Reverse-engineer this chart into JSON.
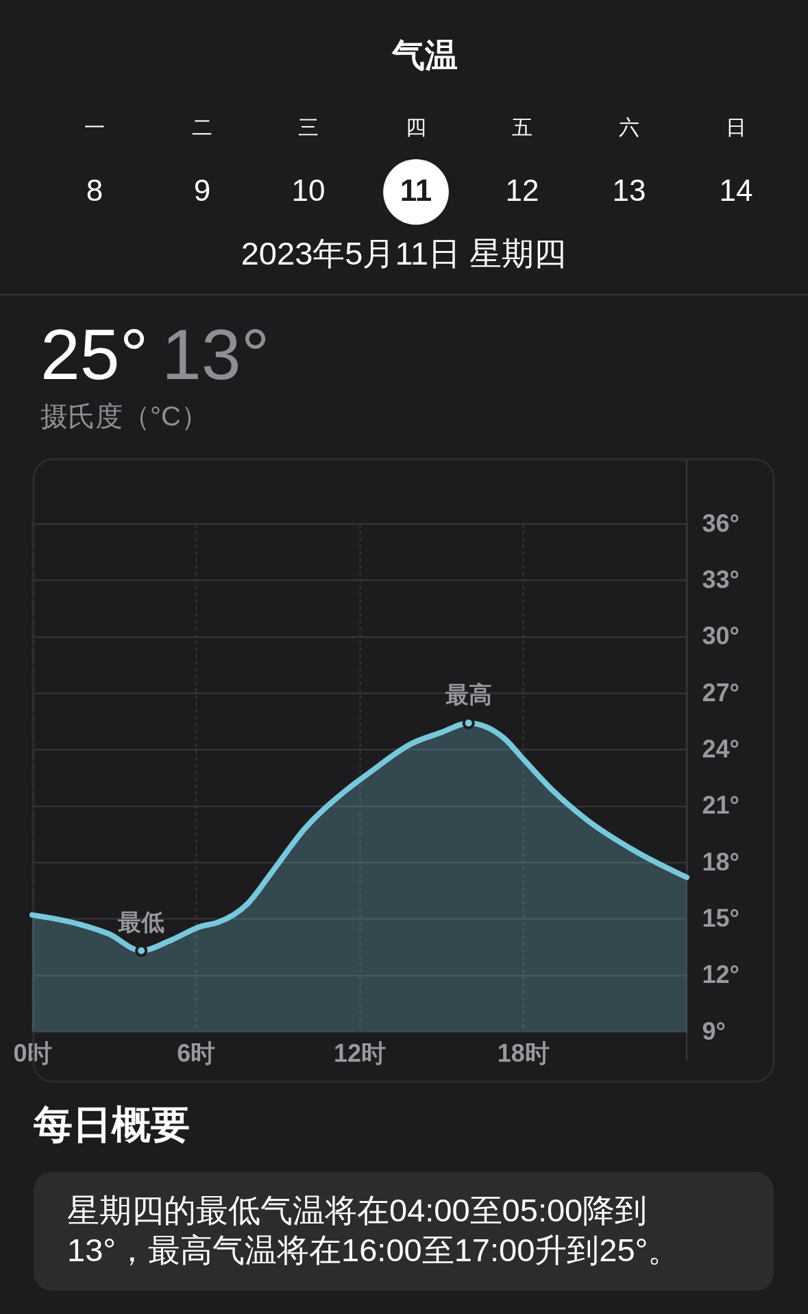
{
  "chart_data": {
    "type": "area",
    "title": "气温",
    "x": [
      0,
      1.75,
      2.8,
      4,
      5,
      6.2,
      6.8,
      7.9,
      8.8,
      10,
      11.4,
      12.4,
      13.9,
      15,
      16,
      17.3,
      18,
      19.1,
      20.3,
      22.1,
      24
    ],
    "values": [
      15.2,
      14.7,
      14.2,
      13.3,
      13.8,
      14.6,
      14.8,
      15.8,
      17.5,
      19.8,
      21.7,
      22.8,
      24.3,
      24.9,
      25.4,
      24.6,
      23.5,
      21.8,
      20.3,
      18.6,
      17.2
    ],
    "color": "#78c8dc",
    "xlim": [
      0,
      24
    ],
    "xticks": [
      {
        "value": 0,
        "label": "0时"
      },
      {
        "value": 6,
        "label": "6时"
      },
      {
        "value": 12,
        "label": "12时"
      },
      {
        "value": 18,
        "label": "18时"
      }
    ],
    "ylim": [
      9,
      36
    ],
    "yticks": [
      {
        "value": 9,
        "label": "9°"
      },
      {
        "value": 12,
        "label": "12°"
      },
      {
        "value": 15,
        "label": "15°"
      },
      {
        "value": 18,
        "label": "18°"
      },
      {
        "value": 21,
        "label": "21°"
      },
      {
        "value": 24,
        "label": "24°"
      },
      {
        "value": 27,
        "label": "27°"
      },
      {
        "value": 30,
        "label": "30°"
      },
      {
        "value": 33,
        "label": "33°"
      },
      {
        "value": 36,
        "label": "36°"
      }
    ],
    "grid": true,
    "annotations": [
      "一",
      "二",
      "三",
      "四",
      "五",
      "六",
      "日",
      "8",
      "9",
      "10",
      "11",
      "12",
      "13",
      "14",
      "2023年5月11日 星期四",
      "25°",
      "13°",
      "摄氏度（°C）",
      "每日概要",
      "星期四的最低气温将在04:00至05:00降到13°，最高气温将在16:00至17:00升到25°。",
      {
        "text": "最低",
        "x": 4,
        "y": 13.3
      },
      {
        "text": "最高",
        "x": 16,
        "y": 25.4
      }
    ]
  }
}
